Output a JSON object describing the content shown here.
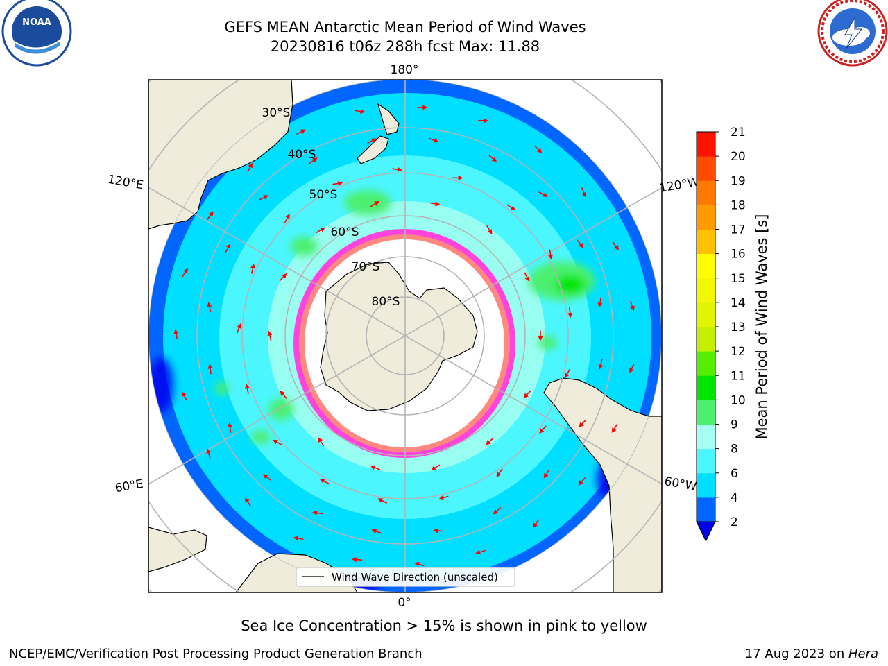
{
  "title": {
    "line1": "GEFS MEAN Antarctic Mean Period of Wind Waves",
    "line2": "20230816 t06z 288h fcst   Max: 11.88"
  },
  "logos": {
    "left": {
      "name": "noaa-logo",
      "text": "NOAA",
      "ring_text": "NATIONAL OCEANIC AND ATMOSPHERIC ADMINISTRATION · U.S. DEPARTMENT OF COMMERCE"
    },
    "right": {
      "name": "nws-logo",
      "ring_text": "NATIONAL WEATHER SERVICE"
    }
  },
  "map": {
    "projection": "south-polar-stereographic",
    "longitude_labels": [
      "180°",
      "120°E",
      "120°W",
      "60°E",
      "60°W",
      "0°"
    ],
    "latitude_labels": [
      "30°S",
      "40°S",
      "50°S",
      "60°S",
      "70°S",
      "80°S"
    ],
    "colors": {
      "land": "#efecdc",
      "coast": "#000000",
      "grid": "#b4b4b4",
      "ice_free": "#ffffff",
      "vector": "#ff0000"
    },
    "legend": {
      "label": "Wind Wave Direction (unscaled)"
    }
  },
  "colorbar": {
    "label": "Mean Period of Wind Waves [s]",
    "ticks": [
      "2",
      "4",
      "6",
      "8",
      "9",
      "10",
      "11",
      "12",
      "13",
      "14",
      "15",
      "16",
      "17",
      "18",
      "19",
      "20",
      "21"
    ],
    "bins": [
      {
        "lo": 2,
        "hi": 4,
        "color": "#0066ff"
      },
      {
        "lo": 4,
        "hi": 6,
        "color": "#00dfff"
      },
      {
        "lo": 6,
        "hi": 8,
        "color": "#4cf6ff"
      },
      {
        "lo": 8,
        "hi": 9,
        "color": "#a6fff0"
      },
      {
        "lo": 9,
        "hi": 10,
        "color": "#4cf070"
      },
      {
        "lo": 10,
        "hi": 11,
        "color": "#00e600"
      },
      {
        "lo": 11,
        "hi": 12,
        "color": "#55ee00"
      },
      {
        "lo": 12,
        "hi": 13,
        "color": "#c4f000"
      },
      {
        "lo": 13,
        "hi": 14,
        "color": "#e0f500"
      },
      {
        "lo": 14,
        "hi": 15,
        "color": "#f2f800"
      },
      {
        "lo": 15,
        "hi": 16,
        "color": "#ffff00"
      },
      {
        "lo": 16,
        "hi": 17,
        "color": "#ffc000"
      },
      {
        "lo": 17,
        "hi": 18,
        "color": "#ff9a00"
      },
      {
        "lo": 18,
        "hi": 19,
        "color": "#ff7800"
      },
      {
        "lo": 19,
        "hi": 20,
        "color": "#ff4a00"
      },
      {
        "lo": 20,
        "hi": 21,
        "color": "#ff1200"
      }
    ],
    "under_color": "#0000ee"
  },
  "note": "Sea Ice Concentration > 15% is shown in pink to yellow",
  "footer": {
    "credit": "NCEP/EMC/Verification Post Processing Product Generation Branch",
    "date_prefix": "17 Aug 2023 on ",
    "machine": "Hera"
  }
}
